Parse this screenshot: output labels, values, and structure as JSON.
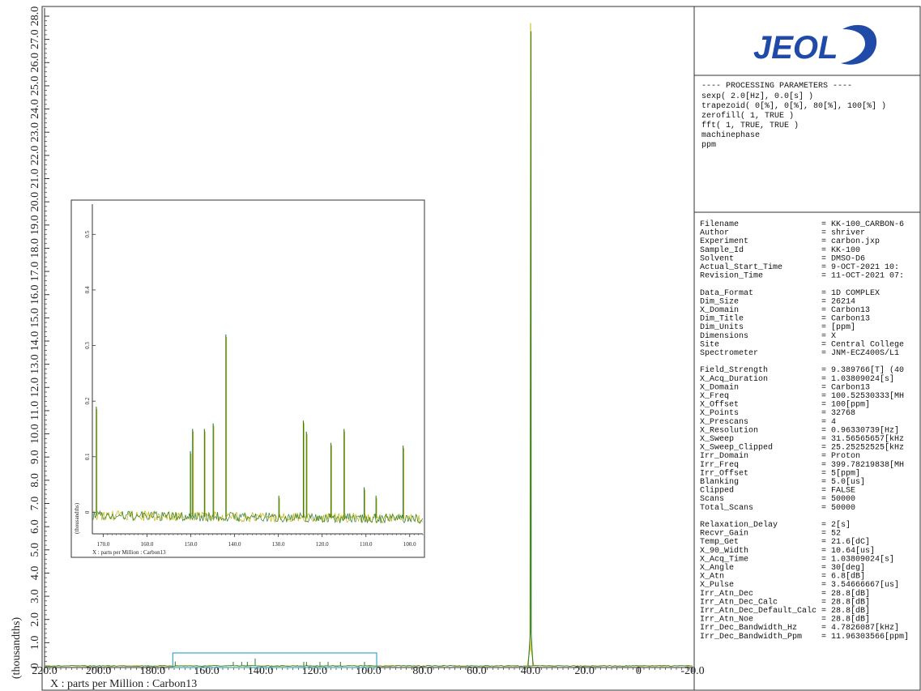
{
  "colors": {
    "spectrum_primary": "#2e7d32",
    "spectrum_secondary": "#c8b400",
    "zoom_box": "#3aa6c8",
    "logo_blue": "#1f4aa8"
  },
  "logo": {
    "text": "JEOL"
  },
  "processing": {
    "title": "---- PROCESSING PARAMETERS ----",
    "lines": [
      "sexp( 2.0[Hz], 0.0[s] )",
      "trapezoid( 0[%], 0[%], 80[%], 100[%] )",
      "zerofill( 1, TRUE )",
      "fft( 1, TRUE, TRUE )",
      "machinephase",
      "ppm"
    ]
  },
  "parameters": {
    "groups": [
      [
        {
          "key": "Filename",
          "value": "= KK-100_CARBON-6"
        },
        {
          "key": "Author",
          "value": "= shriver"
        },
        {
          "key": "Experiment",
          "value": "= carbon.jxp"
        },
        {
          "key": "Sample_Id",
          "value": "= KK-100"
        },
        {
          "key": "Solvent",
          "value": "= DMSO-D6"
        },
        {
          "key": "Actual_Start_Time",
          "value": "= 9-OCT-2021 10:"
        },
        {
          "key": "Revision_Time",
          "value": "= 11-OCT-2021 07:"
        }
      ],
      [
        {
          "key": "Data_Format",
          "value": "= 1D COMPLEX"
        },
        {
          "key": "Dim_Size",
          "value": "= 26214"
        },
        {
          "key": "X_Domain",
          "value": "= Carbon13"
        },
        {
          "key": "Dim_Title",
          "value": "= Carbon13"
        },
        {
          "key": "Dim_Units",
          "value": "= [ppm]"
        },
        {
          "key": "Dimensions",
          "value": "= X"
        },
        {
          "key": "Site",
          "value": "= Central College"
        },
        {
          "key": "Spectrometer",
          "value": "= JNM-ECZ400S/L1"
        }
      ],
      [
        {
          "key": "Field_Strength",
          "value": "= 9.389766[T] (40"
        },
        {
          "key": "X_Acq_Duration",
          "value": "= 1.03809024[s]"
        },
        {
          "key": "X_Domain",
          "value": "= Carbon13"
        },
        {
          "key": "X_Freq",
          "value": "= 100.52530333[MH"
        },
        {
          "key": "X_Offset",
          "value": "= 100[ppm]"
        },
        {
          "key": "X_Points",
          "value": "= 32768"
        },
        {
          "key": "X_Prescans",
          "value": "= 4"
        },
        {
          "key": "X_Resolution",
          "value": "= 0.96330739[Hz]"
        },
        {
          "key": "X_Sweep",
          "value": "= 31.56565657[kHz"
        },
        {
          "key": "X_Sweep_Clipped",
          "value": "= 25.25252525[kHz"
        },
        {
          "key": "Irr_Domain",
          "value": "= Proton"
        },
        {
          "key": "Irr_Freq",
          "value": "= 399.78219838[MH"
        },
        {
          "key": "Irr_Offset",
          "value": "= 5[ppm]"
        },
        {
          "key": "Blanking",
          "value": "= 5.0[us]"
        },
        {
          "key": "Clipped",
          "value": "= FALSE"
        },
        {
          "key": "Scans",
          "value": "= 50000"
        },
        {
          "key": "Total_Scans",
          "value": "= 50000"
        }
      ],
      [
        {
          "key": "Relaxation_Delay",
          "value": "= 2[s]"
        },
        {
          "key": "Recvr_Gain",
          "value": "= 52"
        },
        {
          "key": "Temp_Get",
          "value": "= 21.6[dC]"
        },
        {
          "key": "X_90_Width",
          "value": "= 10.64[us]"
        },
        {
          "key": "X_Acq_Time",
          "value": "= 1.03809024[s]"
        },
        {
          "key": "X_Angle",
          "value": "= 30[deg]"
        },
        {
          "key": "X_Atn",
          "value": "= 6.8[dB]"
        },
        {
          "key": "X_Pulse",
          "value": "= 3.54666667[us]"
        },
        {
          "key": "Irr_Atn_Dec",
          "value": "= 28.8[dB]"
        },
        {
          "key": "Irr_Atn_Dec_Calc",
          "value": "= 28.8[dB]"
        },
        {
          "key": "Irr_Atn_Dec_Default_Calc",
          "value": "= 28.8[dB]"
        },
        {
          "key": "Irr_Atn_Noe",
          "value": "= 28.8[dB]"
        },
        {
          "key": "Irr_Dec_Bandwidth_Hz",
          "value": "= 4.7826087[kHz]"
        },
        {
          "key": "Irr_Dec_Bandwidth_Ppm",
          "value": "= 11.96303566[ppm]"
        }
      ]
    ]
  },
  "chart_data": [
    {
      "type": "line",
      "name": "main",
      "xlabel": "X : parts per Million : Carbon13",
      "ylabel": "(thousandths)",
      "xlim": [
        220.0,
        -20.0
      ],
      "ylim": [
        0.0,
        28.0
      ],
      "x_ticks": [
        "220.0",
        "200.0",
        "180.0",
        "160.0",
        "140.0",
        "120.0",
        "100.0",
        "80.0",
        "60.0",
        "40.0",
        "20.0",
        "0",
        "-20.0"
      ],
      "y_ticks": [
        "0",
        "1.0",
        "2.0",
        "3.0",
        "4.0",
        "5.0",
        "6.0",
        "7.0",
        "8.0",
        "9.0",
        "10.0",
        "11.0",
        "12.0",
        "13.0",
        "14.0",
        "15.0",
        "16.0",
        "17.0",
        "18.0",
        "19.0",
        "20.0",
        "21.0",
        "22.0",
        "23.0",
        "24.0",
        "25.0",
        "26.0",
        "27.0",
        "28.0"
      ],
      "peaks": [
        {
          "x": 40.0,
          "y": 27.7
        },
        {
          "x": 171.6,
          "y": 0.19
        },
        {
          "x": 150.1,
          "y": 0.15
        },
        {
          "x": 147.0,
          "y": 0.15
        },
        {
          "x": 144.9,
          "y": 0.16
        },
        {
          "x": 142.0,
          "y": 0.32
        },
        {
          "x": 124.0,
          "y": 0.16
        },
        {
          "x": 123.0,
          "y": 0.14
        },
        {
          "x": 118.0,
          "y": 0.12
        },
        {
          "x": 115.0,
          "y": 0.15
        },
        {
          "x": 110.4,
          "y": 0.04
        },
        {
          "x": 101.5,
          "y": 0.12
        }
      ],
      "zoom_region": [
        172.5,
        97.0
      ]
    },
    {
      "type": "line",
      "name": "inset",
      "xlabel": "X : parts per Million : Carbon13",
      "ylabel": "(thousandths)",
      "xlim": [
        172.5,
        97.0
      ],
      "ylim": [
        -0.03,
        0.55
      ],
      "x_ticks": [
        "170.0",
        "160.0",
        "150.0",
        "140.0",
        "130.0",
        "120.0",
        "110.0",
        "100.0"
      ],
      "y_ticks": [
        "0",
        "0.1",
        "0.2",
        "0.3",
        "0.4",
        "0.5"
      ],
      "peaks": [
        {
          "x": 171.6,
          "y": 0.19
        },
        {
          "x": 150.1,
          "y": 0.11
        },
        {
          "x": 149.6,
          "y": 0.15
        },
        {
          "x": 146.9,
          "y": 0.15
        },
        {
          "x": 144.9,
          "y": 0.16
        },
        {
          "x": 142.0,
          "y": 0.32
        },
        {
          "x": 129.9,
          "y": 0.03
        },
        {
          "x": 124.3,
          "y": 0.165
        },
        {
          "x": 123.6,
          "y": 0.145
        },
        {
          "x": 118.0,
          "y": 0.125
        },
        {
          "x": 115.0,
          "y": 0.15
        },
        {
          "x": 110.4,
          "y": 0.045
        },
        {
          "x": 107.7,
          "y": 0.03
        },
        {
          "x": 101.5,
          "y": 0.12
        }
      ]
    }
  ]
}
